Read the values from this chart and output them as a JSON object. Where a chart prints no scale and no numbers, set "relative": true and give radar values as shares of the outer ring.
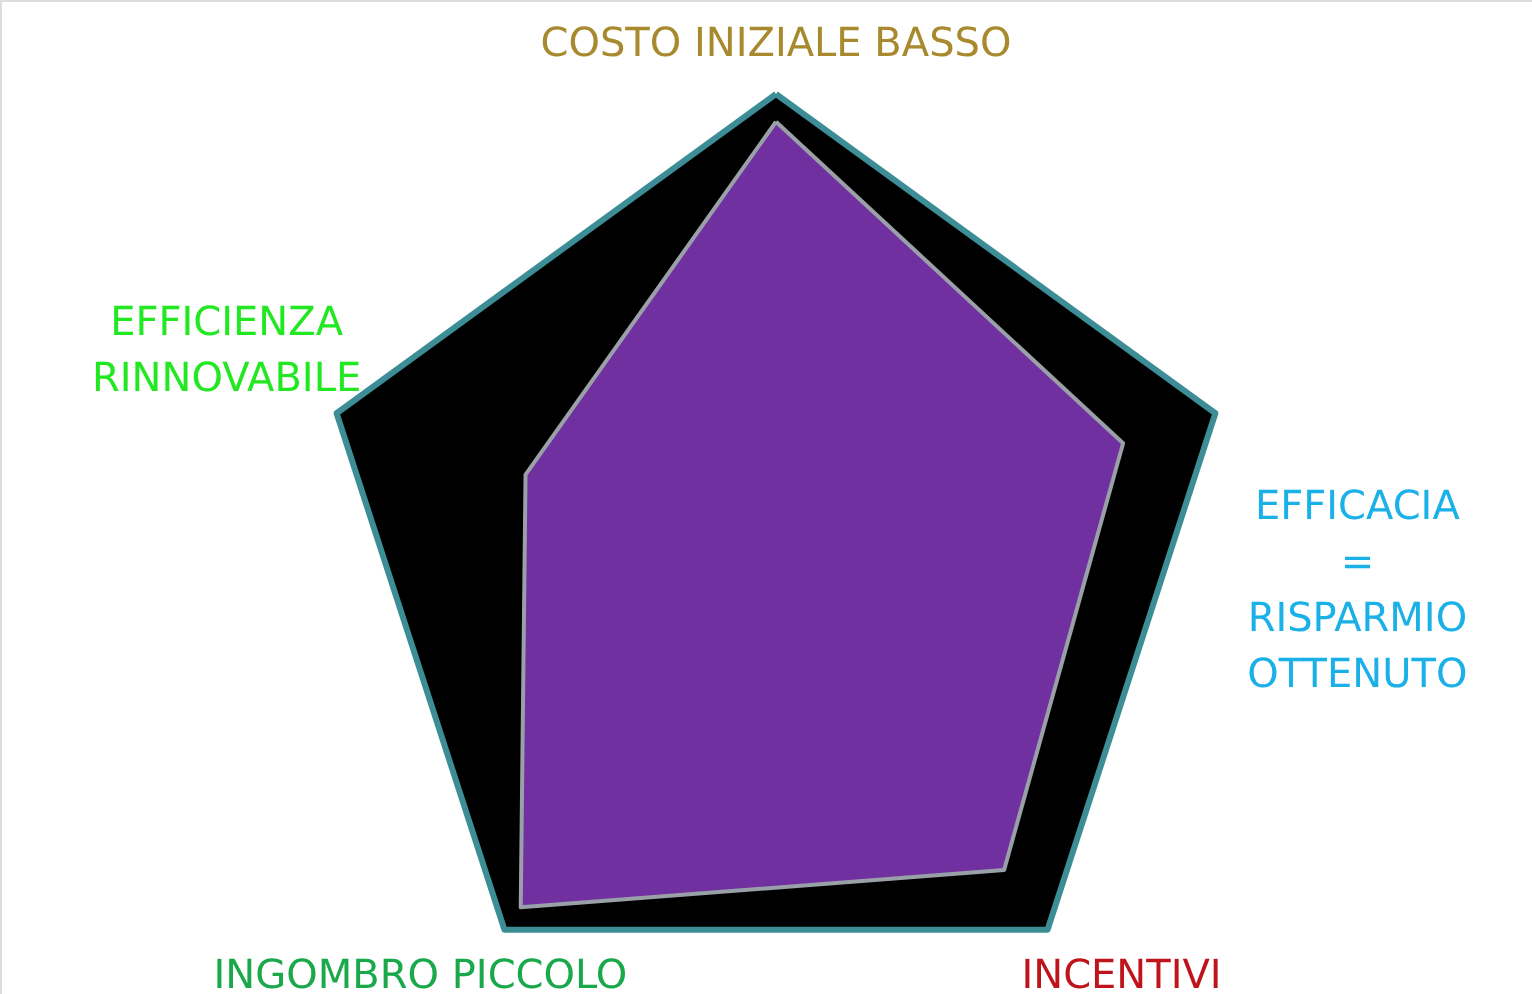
{
  "chart_data": {
    "type": "radar",
    "relative": true,
    "categories": [
      "COSTO INIZIALE BASSO",
      "EFFICACIA\n=\nRISPARMIO\nOTTENUTO",
      "INCENTIVI",
      "INGOMBRO PICCOLO",
      "EFFICIENZA\nRINNOVABILE"
    ],
    "series": [
      {
        "color": "#7030a0",
        "values": [
          0.94,
          0.79,
          0.84,
          0.94,
          0.57
        ]
      }
    ]
  }
}
